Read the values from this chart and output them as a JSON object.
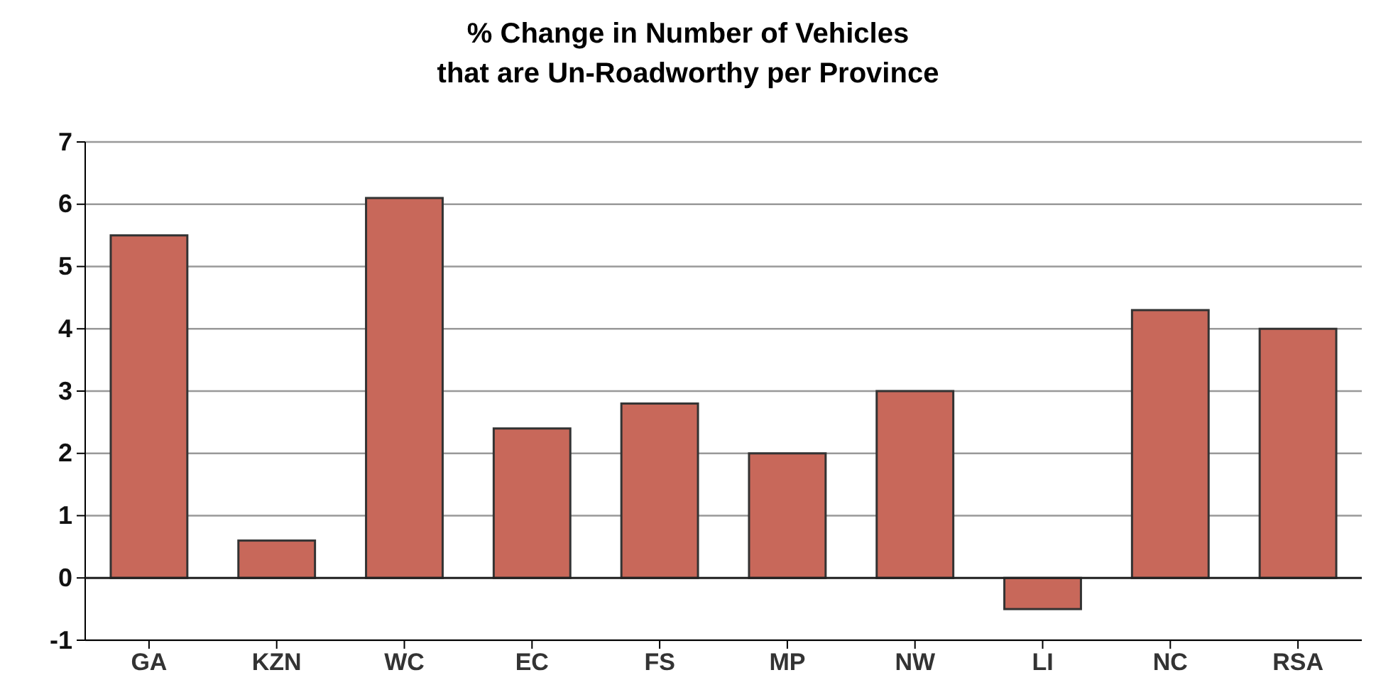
{
  "chart_data": {
    "type": "bar",
    "title": "% Change in Number of Vehicles\nthat are Un-Roadworthy per Province",
    "categories": [
      "GA",
      "KZN",
      "WC",
      "EC",
      "FS",
      "MP",
      "NW",
      "LI",
      "NC",
      "RSA"
    ],
    "values": [
      5.5,
      0.6,
      6.1,
      2.4,
      2.8,
      2.0,
      3.0,
      -0.5,
      4.3,
      4.0
    ],
    "color": "#c8685a",
    "ylim": [
      -1,
      7
    ],
    "yticks": [
      -1,
      0,
      1,
      2,
      3,
      4,
      5,
      6,
      7
    ],
    "grid": "y"
  }
}
